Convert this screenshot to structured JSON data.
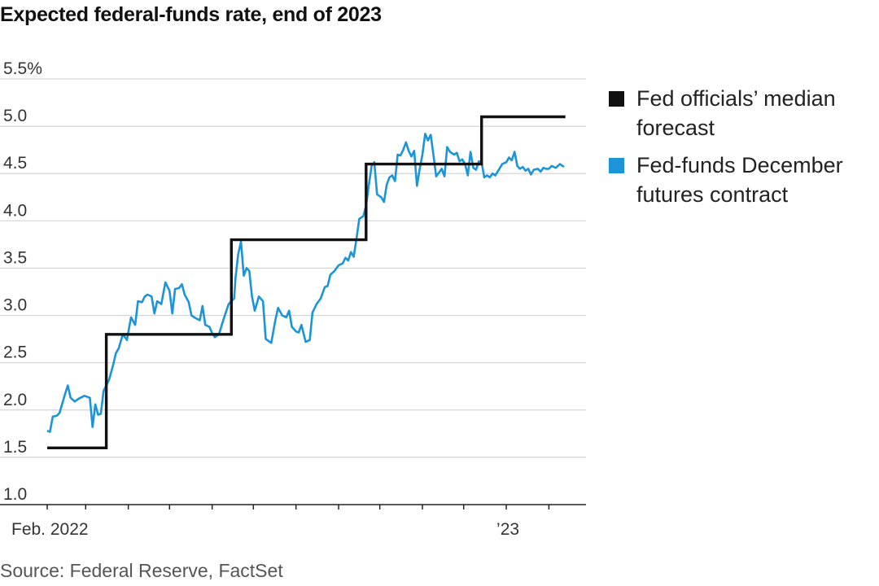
{
  "title": "Expected federal-funds rate, end of 2023",
  "source": "Source: Federal Reserve, FactSet",
  "colors": {
    "median": "#111111",
    "futures": "#1b95d8",
    "grid": "#d4d4d4",
    "axis": "#222222",
    "tick_text": "#333333",
    "source_text": "#555555"
  },
  "chart_data": {
    "type": "line",
    "title": "Expected federal-funds rate, end of 2023",
    "xlabel": "",
    "ylabel": "",
    "xlim": [
      "2022-02-01",
      "2023-02-28"
    ],
    "ylim": [
      1.0,
      5.5
    ],
    "y_ticks": [
      1.0,
      1.5,
      2.0,
      2.5,
      3.0,
      3.5,
      4.0,
      4.5,
      5.0,
      5.5
    ],
    "y_tick_labels": [
      "1.0",
      "1.5",
      "2.0",
      "2.5",
      "3.0",
      "3.5",
      "4.0",
      "4.5",
      "5.0",
      "5.5%"
    ],
    "x_ticks": [
      "2022-02-01",
      "2022-03-01",
      "2022-04-01",
      "2022-05-01",
      "2022-06-01",
      "2022-07-01",
      "2022-08-01",
      "2022-09-01",
      "2022-10-01",
      "2022-11-01",
      "2022-12-01",
      "2023-01-01",
      "2023-02-01"
    ],
    "x_tick_labels": [
      {
        "date": "2022-02-01",
        "label": "Feb. 2022"
      },
      {
        "date": "2023-01-01",
        "label": "’23"
      }
    ],
    "grid": "horizontal",
    "legend": "right",
    "series": [
      {
        "name": "Fed officials’ median forecast",
        "color": "#111111",
        "step": true,
        "points": [
          [
            "2022-02-01",
            1.6
          ],
          [
            "2022-03-16",
            1.6
          ],
          [
            "2022-03-16",
            2.8
          ],
          [
            "2022-06-15",
            2.8
          ],
          [
            "2022-06-15",
            3.8
          ],
          [
            "2022-09-21",
            3.8
          ],
          [
            "2022-09-21",
            4.6
          ],
          [
            "2022-12-14",
            4.6
          ],
          [
            "2022-12-14",
            5.1
          ],
          [
            "2023-02-13",
            5.1
          ]
        ]
      },
      {
        "name": "Fed-funds December futures contract",
        "color": "#1b95d8",
        "step": false,
        "points": [
          [
            "2022-02-01",
            1.78
          ],
          [
            "2022-02-03",
            1.77
          ],
          [
            "2022-02-05",
            1.93
          ],
          [
            "2022-02-08",
            1.94
          ],
          [
            "2022-02-10",
            1.97
          ],
          [
            "2022-02-14",
            2.17
          ],
          [
            "2022-02-16",
            2.26
          ],
          [
            "2022-02-18",
            2.13
          ],
          [
            "2022-02-21",
            2.09
          ],
          [
            "2022-02-24",
            2.12
          ],
          [
            "2022-02-28",
            2.15
          ],
          [
            "2022-03-04",
            2.13
          ],
          [
            "2022-03-06",
            1.82
          ],
          [
            "2022-03-08",
            2.06
          ],
          [
            "2022-03-10",
            1.95
          ],
          [
            "2022-03-12",
            1.96
          ],
          [
            "2022-03-14",
            2.2
          ],
          [
            "2022-03-18",
            2.32
          ],
          [
            "2022-03-21",
            2.48
          ],
          [
            "2022-03-23",
            2.6
          ],
          [
            "2022-03-25",
            2.65
          ],
          [
            "2022-03-28",
            2.8
          ],
          [
            "2022-03-31",
            2.74
          ],
          [
            "2022-04-03",
            2.98
          ],
          [
            "2022-04-06",
            2.9
          ],
          [
            "2022-04-08",
            3.15
          ],
          [
            "2022-04-11",
            3.14
          ],
          [
            "2022-04-13",
            3.2
          ],
          [
            "2022-04-15",
            3.22
          ],
          [
            "2022-04-18",
            3.2
          ],
          [
            "2022-04-20",
            3.02
          ],
          [
            "2022-04-22",
            3.15
          ],
          [
            "2022-04-25",
            3.12
          ],
          [
            "2022-04-28",
            3.35
          ],
          [
            "2022-05-01",
            3.26
          ],
          [
            "2022-05-03",
            3.02
          ],
          [
            "2022-05-05",
            3.28
          ],
          [
            "2022-05-08",
            3.29
          ],
          [
            "2022-05-10",
            3.33
          ],
          [
            "2022-05-12",
            3.22
          ],
          [
            "2022-05-15",
            3.14
          ],
          [
            "2022-05-17",
            3.0
          ],
          [
            "2022-05-20",
            2.97
          ],
          [
            "2022-05-23",
            2.95
          ],
          [
            "2022-05-25",
            3.1
          ],
          [
            "2022-05-27",
            2.9
          ],
          [
            "2022-05-30",
            2.88
          ],
          [
            "2022-06-01",
            2.81
          ],
          [
            "2022-06-03",
            2.77
          ],
          [
            "2022-06-06",
            2.8
          ],
          [
            "2022-06-08",
            2.9
          ],
          [
            "2022-06-10",
            2.99
          ],
          [
            "2022-06-13",
            3.12
          ],
          [
            "2022-06-15",
            3.15
          ],
          [
            "2022-06-17",
            3.18
          ],
          [
            "2022-06-18",
            3.4
          ],
          [
            "2022-06-20",
            3.65
          ],
          [
            "2022-06-22",
            3.78
          ],
          [
            "2022-06-24",
            3.42
          ],
          [
            "2022-06-26",
            3.5
          ],
          [
            "2022-06-28",
            3.47
          ],
          [
            "2022-06-30",
            3.2
          ],
          [
            "2022-07-02",
            3.05
          ],
          [
            "2022-07-05",
            3.2
          ],
          [
            "2022-07-08",
            3.15
          ],
          [
            "2022-07-10",
            2.75
          ],
          [
            "2022-07-14",
            2.71
          ],
          [
            "2022-07-17",
            2.95
          ],
          [
            "2022-07-19",
            3.08
          ],
          [
            "2022-07-22",
            3.0
          ],
          [
            "2022-07-25",
            2.98
          ],
          [
            "2022-07-27",
            3.05
          ],
          [
            "2022-07-29",
            2.88
          ],
          [
            "2022-08-01",
            2.83
          ],
          [
            "2022-08-03",
            2.82
          ],
          [
            "2022-08-05",
            2.9
          ],
          [
            "2022-08-08",
            2.72
          ],
          [
            "2022-08-11",
            2.74
          ],
          [
            "2022-08-13",
            3.03
          ],
          [
            "2022-08-16",
            3.12
          ],
          [
            "2022-08-19",
            3.18
          ],
          [
            "2022-08-22",
            3.3
          ],
          [
            "2022-08-24",
            3.31
          ],
          [
            "2022-08-26",
            3.43
          ],
          [
            "2022-08-29",
            3.47
          ],
          [
            "2022-09-01",
            3.53
          ],
          [
            "2022-09-04",
            3.55
          ],
          [
            "2022-09-06",
            3.61
          ],
          [
            "2022-09-08",
            3.58
          ],
          [
            "2022-09-10",
            3.67
          ],
          [
            "2022-09-12",
            3.62
          ],
          [
            "2022-09-14",
            3.81
          ],
          [
            "2022-09-16",
            4.02
          ],
          [
            "2022-09-19",
            4.05
          ],
          [
            "2022-09-21",
            4.16
          ],
          [
            "2022-09-23",
            4.38
          ],
          [
            "2022-09-25",
            4.58
          ],
          [
            "2022-09-27",
            4.62
          ],
          [
            "2022-09-29",
            4.28
          ],
          [
            "2022-10-02",
            4.25
          ],
          [
            "2022-10-04",
            4.2
          ],
          [
            "2022-10-06",
            4.38
          ],
          [
            "2022-10-08",
            4.46
          ],
          [
            "2022-10-10",
            4.48
          ],
          [
            "2022-10-12",
            4.42
          ],
          [
            "2022-10-14",
            4.7
          ],
          [
            "2022-10-16",
            4.69
          ],
          [
            "2022-10-18",
            4.75
          ],
          [
            "2022-10-20",
            4.83
          ],
          [
            "2022-10-22",
            4.74
          ],
          [
            "2022-10-24",
            4.68
          ],
          [
            "2022-10-26",
            4.74
          ],
          [
            "2022-10-28",
            4.37
          ],
          [
            "2022-10-30",
            4.55
          ],
          [
            "2022-11-01",
            4.7
          ],
          [
            "2022-11-03",
            4.92
          ],
          [
            "2022-11-05",
            4.85
          ],
          [
            "2022-11-07",
            4.91
          ],
          [
            "2022-11-09",
            4.7
          ],
          [
            "2022-11-11",
            4.47
          ],
          [
            "2022-11-13",
            4.51
          ],
          [
            "2022-11-15",
            4.55
          ],
          [
            "2022-11-17",
            4.47
          ],
          [
            "2022-11-19",
            4.78
          ],
          [
            "2022-11-21",
            4.73
          ],
          [
            "2022-11-24",
            4.7
          ],
          [
            "2022-11-26",
            4.72
          ],
          [
            "2022-11-28",
            4.63
          ],
          [
            "2022-11-30",
            4.65
          ],
          [
            "2022-12-02",
            4.6
          ],
          [
            "2022-12-04",
            4.48
          ],
          [
            "2022-12-06",
            4.73
          ],
          [
            "2022-12-08",
            4.56
          ],
          [
            "2022-12-10",
            4.54
          ],
          [
            "2022-12-12",
            4.63
          ],
          [
            "2022-12-14",
            4.62
          ],
          [
            "2022-12-16",
            4.46
          ],
          [
            "2022-12-18",
            4.48
          ],
          [
            "2022-12-20",
            4.46
          ],
          [
            "2022-12-22",
            4.5
          ],
          [
            "2022-12-24",
            4.48
          ],
          [
            "2022-12-27",
            4.55
          ],
          [
            "2022-12-29",
            4.6
          ],
          [
            "2023-01-01",
            4.62
          ],
          [
            "2023-01-03",
            4.67
          ],
          [
            "2023-01-05",
            4.64
          ],
          [
            "2023-01-07",
            4.73
          ],
          [
            "2023-01-09",
            4.58
          ],
          [
            "2023-01-11",
            4.55
          ],
          [
            "2023-01-13",
            4.57
          ],
          [
            "2023-01-15",
            4.53
          ],
          [
            "2023-01-17",
            4.55
          ],
          [
            "2023-01-19",
            4.49
          ],
          [
            "2023-01-21",
            4.54
          ],
          [
            "2023-01-24",
            4.55
          ],
          [
            "2023-01-26",
            4.52
          ],
          [
            "2023-01-28",
            4.56
          ],
          [
            "2023-01-30",
            4.55
          ],
          [
            "2023-02-01",
            4.55
          ],
          [
            "2023-02-03",
            4.58
          ],
          [
            "2023-02-06",
            4.56
          ],
          [
            "2023-02-09",
            4.6
          ],
          [
            "2023-02-12",
            4.57
          ]
        ]
      }
    ]
  }
}
